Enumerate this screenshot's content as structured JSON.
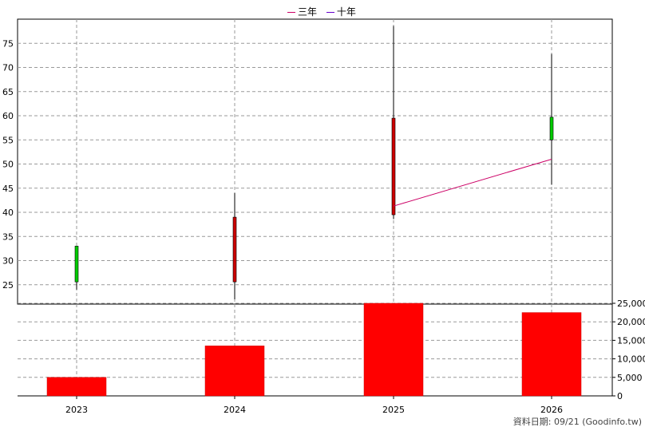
{
  "legend": {
    "series": [
      {
        "name": "三年",
        "color": "#cc0066"
      },
      {
        "name": "十年",
        "color": "#6600cc"
      }
    ]
  },
  "footer": {
    "text": "資料日期: 09/21  (Goodinfo.tw)"
  },
  "chart_data": [
    {
      "type": "candlestick",
      "categories": [
        "2023",
        "2024",
        "2025",
        "2026"
      ],
      "ylim": [
        21,
        80
      ],
      "yticks": [
        "25",
        "30",
        "35",
        "40",
        "45",
        "50",
        "55",
        "60",
        "65",
        "70",
        "75"
      ],
      "candles": [
        {
          "x": "2023",
          "open": 25.6,
          "close": 33.0,
          "high": 33.0,
          "low": 24.0,
          "color": "#00cc00"
        },
        {
          "x": "2024",
          "open": 39.0,
          "close": 25.6,
          "high": 44.0,
          "low": 22.0,
          "color": "#cc0000"
        },
        {
          "x": "2025",
          "open": 59.5,
          "close": 39.5,
          "high": 78.6,
          "low": 38.6,
          "color": "#cc0000"
        },
        {
          "x": "2026",
          "open": 55.0,
          "close": 59.7,
          "high": 72.8,
          "low": 45.7,
          "color": "#00cc00"
        }
      ],
      "series": [
        {
          "name": "三年",
          "x": [
            "2025",
            "2026"
          ],
          "values": [
            41.3,
            51.0
          ],
          "color": "#cc0066"
        }
      ],
      "grid": true
    },
    {
      "type": "bar",
      "categories": [
        "2023",
        "2024",
        "2025",
        "2026"
      ],
      "values": [
        5000,
        13500,
        25000,
        22500
      ],
      "ylim": [
        0,
        25000
      ],
      "yticks": [
        "0",
        "5,000",
        "10,000",
        "15,000",
        "20,000",
        "25,000"
      ],
      "color": "#ff0000",
      "grid": true
    }
  ]
}
